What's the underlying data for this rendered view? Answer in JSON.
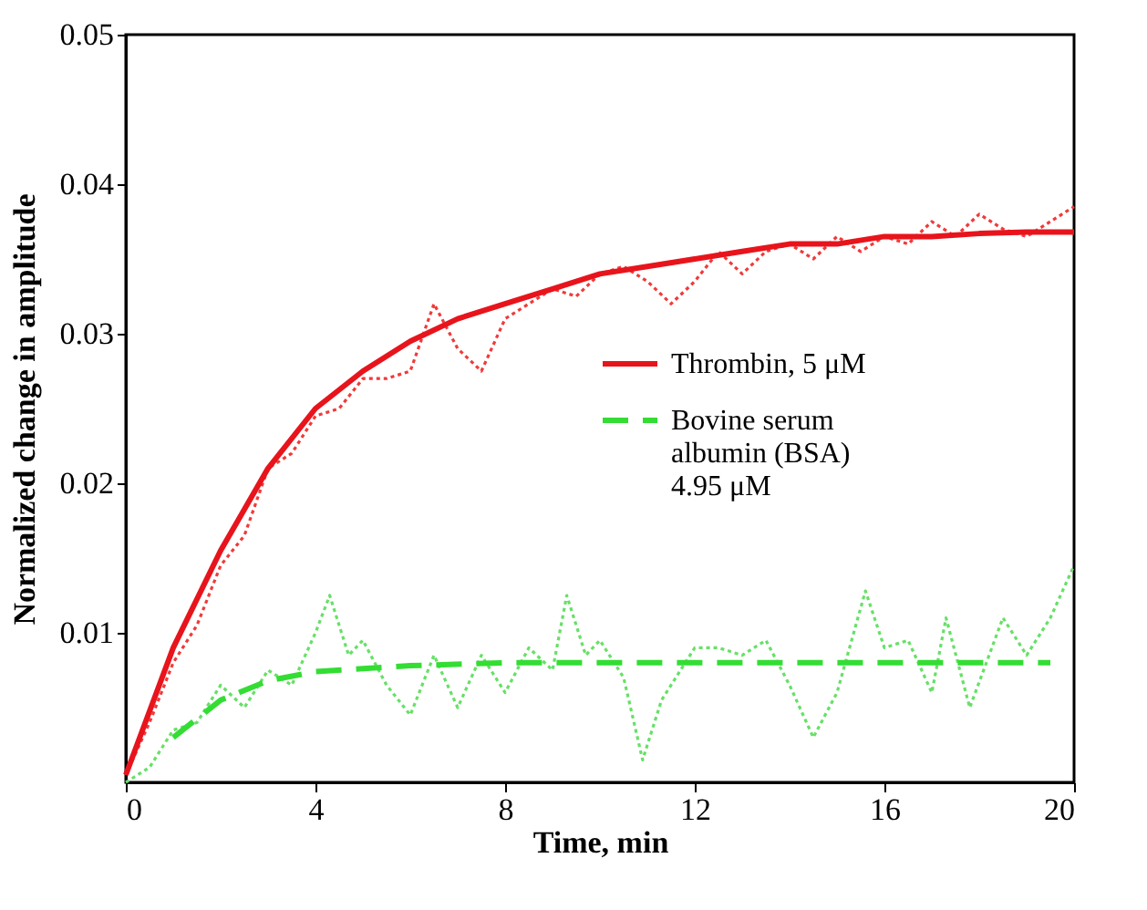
{
  "chart_data": {
    "type": "line",
    "xlabel": "Time, min",
    "ylabel": "Normalized change in amplitude",
    "xlim": [
      0,
      20
    ],
    "xticks": [
      0,
      4,
      8,
      12,
      16,
      20
    ],
    "ylim": [
      0,
      0.05
    ],
    "yticks": [
      0.01,
      0.02,
      0.03,
      0.04,
      0.05
    ],
    "grid": false,
    "legend": "right",
    "marker": "none",
    "series": [
      {
        "color": "#f03a3a",
        "line_style": "dotted",
        "x": [
          0,
          0.5,
          1,
          1.5,
          2,
          2.5,
          3,
          3.5,
          4,
          4.5,
          5,
          5.5,
          6,
          6.5,
          7,
          7.5,
          8,
          8.5,
          9,
          9.5,
          10,
          10.5,
          11,
          11.5,
          12,
          12.5,
          13,
          13.5,
          14,
          14.5,
          15,
          15.5,
          16,
          16.5,
          17,
          17.5,
          18,
          18.5,
          19,
          19.5,
          20
        ],
        "values": [
          0.0005,
          0.004,
          0.008,
          0.0105,
          0.0145,
          0.0165,
          0.021,
          0.022,
          0.0245,
          0.025,
          0.027,
          0.027,
          0.0275,
          0.032,
          0.029,
          0.0275,
          0.031,
          0.032,
          0.033,
          0.0325,
          0.034,
          0.0345,
          0.0335,
          0.032,
          0.0335,
          0.0355,
          0.034,
          0.0355,
          0.036,
          0.035,
          0.0365,
          0.0355,
          0.0365,
          0.036,
          0.0375,
          0.0365,
          0.038,
          0.037,
          0.0365,
          0.0375,
          0.0385
        ]
      },
      {
        "color": "#66e066",
        "line_style": "dotted",
        "x": [
          0,
          0.5,
          1,
          1.5,
          2,
          2.5,
          3,
          3.5,
          4,
          4.3,
          4.7,
          5,
          5.5,
          6,
          6.5,
          7,
          7.5,
          8,
          8.5,
          9,
          9.3,
          9.7,
          10,
          10.5,
          10.9,
          11.3,
          12,
          12.5,
          13,
          13.5,
          14,
          14.5,
          15,
          15.6,
          16,
          16.5,
          17,
          17.3,
          17.8,
          18.5,
          19,
          19.5,
          20
        ],
        "values": [
          0,
          0.001,
          0.0035,
          0.004,
          0.0065,
          0.005,
          0.0075,
          0.0065,
          0.01,
          0.0125,
          0.0085,
          0.0095,
          0.0065,
          0.0045,
          0.0085,
          0.005,
          0.0085,
          0.006,
          0.009,
          0.0075,
          0.0125,
          0.0085,
          0.0095,
          0.007,
          0.0015,
          0.0055,
          0.009,
          0.009,
          0.0085,
          0.0095,
          0.0065,
          0.003,
          0.006,
          0.0128,
          0.009,
          0.0095,
          0.006,
          0.011,
          0.005,
          0.011,
          0.0085,
          0.011,
          0.0145
        ]
      },
      {
        "name": "Thrombin, 5 μM",
        "color": "#e8141c",
        "line_style": "solid",
        "x": [
          0,
          1,
          2,
          3,
          4,
          5,
          6,
          7,
          8,
          9,
          10,
          11,
          12,
          13,
          14,
          15,
          16,
          17,
          18,
          19,
          20
        ],
        "values": [
          0.0005,
          0.009,
          0.0155,
          0.021,
          0.025,
          0.0275,
          0.0295,
          0.031,
          0.032,
          0.033,
          0.034,
          0.0345,
          0.035,
          0.0355,
          0.036,
          0.036,
          0.0365,
          0.0365,
          0.0367,
          0.0368,
          0.0368
        ]
      },
      {
        "name": "Bovine serum\nalbumin (BSA)\n4.95 μM",
        "color": "#33dd33",
        "line_style": "dashed",
        "x": [
          1,
          2,
          3,
          4,
          5,
          6,
          8,
          10,
          12,
          14,
          16,
          18,
          19.5
        ],
        "values": [
          0.003,
          0.0055,
          0.0068,
          0.0074,
          0.0076,
          0.0078,
          0.008,
          0.008,
          0.008,
          0.008,
          0.008,
          0.008,
          0.008
        ]
      }
    ]
  }
}
